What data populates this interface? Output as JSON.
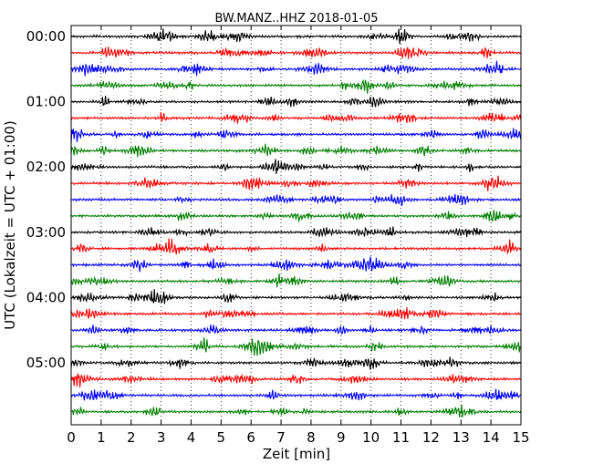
{
  "chart_data": {
    "type": "line",
    "title": "BW.MANZ..HHZ 2018-01-05",
    "xlabel": "Zeit  [min]",
    "ylabel": "UTC (Lokalzeit = UTC + 01:00)",
    "xlim": [
      0,
      15
    ],
    "x_ticks": [
      "0",
      "1",
      "2",
      "3",
      "4",
      "5",
      "6",
      "7",
      "8",
      "9",
      "10",
      "11",
      "12",
      "13",
      "14",
      "15"
    ],
    "y_ticks": [
      "00:00",
      "01:00",
      "02:00",
      "03:00",
      "04:00",
      "05:00"
    ],
    "trace_interval_min": 15,
    "trace_count": 24,
    "trace_colors": [
      "#000000",
      "#ff0000",
      "#0000ff",
      "#007f00"
    ],
    "grid": "vertical dotted lines at each minute",
    "description_note": "seismogram helicorder; each trace = 15 min of ground motion, colors cycle black, red, blue, green"
  }
}
